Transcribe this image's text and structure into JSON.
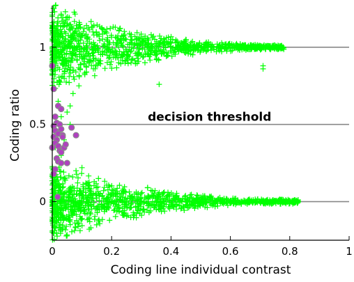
{
  "chart_data": {
    "type": "scatter",
    "title": "",
    "xlabel": "Coding line individual contrast",
    "ylabel": "Coding ratio",
    "xlim": [
      0,
      1
    ],
    "ylim": [
      -0.25,
      1.27
    ],
    "x_ticks": [
      0,
      0.2,
      0.4,
      0.6,
      0.8,
      1
    ],
    "x_tick_labels": [
      "0",
      "0.2",
      "0.4",
      "0.6",
      "0.8",
      "1"
    ],
    "y_ticks": [
      0,
      0.5,
      1
    ],
    "y_tick_labels": [
      "0",
      "0.5",
      "1"
    ],
    "grid": false,
    "legend": "none",
    "reference_lines": [
      {
        "y": 0,
        "label": ""
      },
      {
        "y": 0.5,
        "label": "decision threshold"
      },
      {
        "y": 1,
        "label": ""
      }
    ],
    "colors": {
      "cross_marker": "#00ff00",
      "circle_marker_fill": "#b040c0",
      "circle_marker_edge": "#8a8a8a",
      "reference_line": "#888888",
      "axis": "#000000"
    },
    "series": [
      {
        "marker": "cross",
        "color": "#00ff00",
        "bands": [
          {
            "y_center": 1,
            "x_range": [
              0.0,
              0.78
            ],
            "spread_at_zero": 0.27,
            "spread_at_end": 0.015,
            "n": 1100
          },
          {
            "y_center": 0,
            "x_range": [
              0.0,
              0.83
            ],
            "spread_at_zero": 0.24,
            "spread_at_end": 0.012,
            "n": 1100
          }
        ],
        "extra_points": [
          {
            "x": 0.03,
            "y": 0.55
          },
          {
            "x": 0.05,
            "y": 0.58
          },
          {
            "x": 0.02,
            "y": 0.45
          },
          {
            "x": 0.04,
            "y": 0.4
          },
          {
            "x": 0.06,
            "y": 0.62
          },
          {
            "x": 0.03,
            "y": 0.3
          },
          {
            "x": 0.07,
            "y": 0.7
          },
          {
            "x": 0.05,
            "y": 0.25
          },
          {
            "x": 0.36,
            "y": 0.76
          },
          {
            "x": 0.71,
            "y": 0.88
          },
          {
            "x": 0.71,
            "y": 0.86
          },
          {
            "x": 0.08,
            "y": 0.2
          },
          {
            "x": 0.02,
            "y": 0.65
          },
          {
            "x": 0.09,
            "y": 0.75
          },
          {
            "x": 0.04,
            "y": 0.15
          },
          {
            "x": 0.1,
            "y": 0.22
          },
          {
            "x": 0.01,
            "y": 0.35
          },
          {
            "x": 0.06,
            "y": 0.5
          }
        ]
      },
      {
        "marker": "circle",
        "color": "#b040c0",
        "points": [
          {
            "x": 0.0,
            "y": 0.88
          },
          {
            "x": 0.005,
            "y": 0.73
          },
          {
            "x": 0.02,
            "y": 0.62
          },
          {
            "x": 0.03,
            "y": 0.6
          },
          {
            "x": 0.01,
            "y": 0.55
          },
          {
            "x": 0.015,
            "y": 0.51
          },
          {
            "x": 0.025,
            "y": 0.5
          },
          {
            "x": 0.005,
            "y": 0.49
          },
          {
            "x": 0.03,
            "y": 0.47
          },
          {
            "x": 0.01,
            "y": 0.46
          },
          {
            "x": 0.02,
            "y": 0.44
          },
          {
            "x": 0.035,
            "y": 0.43
          },
          {
            "x": 0.005,
            "y": 0.42
          },
          {
            "x": 0.015,
            "y": 0.4
          },
          {
            "x": 0.01,
            "y": 0.38
          },
          {
            "x": 0.02,
            "y": 0.36
          },
          {
            "x": 0.0,
            "y": 0.35
          },
          {
            "x": 0.025,
            "y": 0.33
          },
          {
            "x": 0.03,
            "y": 0.32
          },
          {
            "x": 0.015,
            "y": 0.28
          },
          {
            "x": 0.02,
            "y": 0.26
          },
          {
            "x": 0.03,
            "y": 0.25
          },
          {
            "x": 0.01,
            "y": 0.21
          },
          {
            "x": 0.005,
            "y": 0.18
          },
          {
            "x": 0.05,
            "y": 0.25
          },
          {
            "x": 0.065,
            "y": 0.48
          },
          {
            "x": 0.08,
            "y": 0.43
          },
          {
            "x": 0.04,
            "y": 0.35
          },
          {
            "x": 0.045,
            "y": 0.37
          },
          {
            "x": 0.035,
            "y": 0.42
          },
          {
            "x": 0.018,
            "y": 0.03
          }
        ]
      }
    ],
    "annotations": [
      {
        "text": "decision threshold",
        "x": 0.53,
        "y": 0.5,
        "anchor": "above-center"
      }
    ]
  }
}
